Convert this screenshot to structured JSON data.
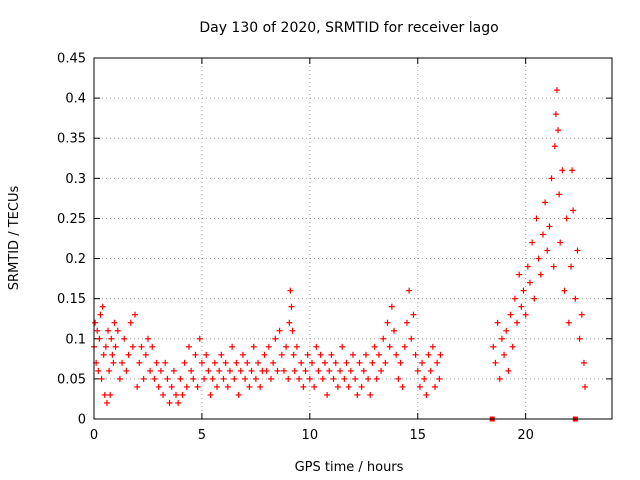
{
  "chart_data": {
    "type": "scatter",
    "title": "Day 130 of 2020, SRMTID for receiver lago",
    "xlabel": "GPS time / hours",
    "ylabel": "SRMTID / TECUs",
    "xlim": [
      0,
      24
    ],
    "ylim": [
      0,
      0.45
    ],
    "xticks": [
      0,
      5,
      10,
      15,
      20
    ],
    "xtick_labels": [
      "0",
      "5",
      "10",
      "15",
      "20"
    ],
    "yticks": [
      0,
      0.05,
      0.1,
      0.15,
      0.2,
      0.25,
      0.3,
      0.35,
      0.4,
      0.45
    ],
    "ytick_labels": [
      "0",
      "0.05",
      "0.1",
      "0.15",
      "0.2",
      "0.25",
      "0.3",
      "0.35",
      "0.4",
      "0.45"
    ],
    "grid": true,
    "marker": "plus",
    "color": "#ff0000",
    "series": [
      {
        "name": "SRMTID",
        "points": [
          [
            0.0,
            0.09
          ],
          [
            0.05,
            0.12
          ],
          [
            0.1,
            0.07
          ],
          [
            0.15,
            0.11
          ],
          [
            0.2,
            0.06
          ],
          [
            0.25,
            0.1
          ],
          [
            0.3,
            0.13
          ],
          [
            0.35,
            0.05
          ],
          [
            0.4,
            0.14
          ],
          [
            0.45,
            0.08
          ],
          [
            0.5,
            0.03
          ],
          [
            0.55,
            0.09
          ],
          [
            0.6,
            0.02
          ],
          [
            0.65,
            0.11
          ],
          [
            0.7,
            0.06
          ],
          [
            0.75,
            0.03
          ],
          [
            0.8,
            0.1
          ],
          [
            0.85,
            0.08
          ],
          [
            0.9,
            0.07
          ],
          [
            0.95,
            0.12
          ],
          [
            1.0,
            0.09
          ],
          [
            1.1,
            0.11
          ],
          [
            1.2,
            0.05
          ],
          [
            1.3,
            0.07
          ],
          [
            1.4,
            0.1
          ],
          [
            1.5,
            0.06
          ],
          [
            1.6,
            0.08
          ],
          [
            1.7,
            0.12
          ],
          [
            1.8,
            0.09
          ],
          [
            1.9,
            0.13
          ],
          [
            2.0,
            0.04
          ],
          [
            2.1,
            0.07
          ],
          [
            2.2,
            0.09
          ],
          [
            2.3,
            0.05
          ],
          [
            2.4,
            0.08
          ],
          [
            2.5,
            0.1
          ],
          [
            2.6,
            0.06
          ],
          [
            2.7,
            0.09
          ],
          [
            2.8,
            0.05
          ],
          [
            2.9,
            0.07
          ],
          [
            3.0,
            0.04
          ],
          [
            3.1,
            0.06
          ],
          [
            3.2,
            0.03
          ],
          [
            3.3,
            0.07
          ],
          [
            3.4,
            0.05
          ],
          [
            3.5,
            0.02
          ],
          [
            3.6,
            0.04
          ],
          [
            3.7,
            0.06
          ],
          [
            3.8,
            0.03
          ],
          [
            3.9,
            0.02
          ],
          [
            4.0,
            0.05
          ],
          [
            4.1,
            0.03
          ],
          [
            4.2,
            0.07
          ],
          [
            4.3,
            0.04
          ],
          [
            4.4,
            0.09
          ],
          [
            4.5,
            0.06
          ],
          [
            4.6,
            0.05
          ],
          [
            4.7,
            0.08
          ],
          [
            4.8,
            0.04
          ],
          [
            4.9,
            0.1
          ],
          [
            5.0,
            0.07
          ],
          [
            5.1,
            0.05
          ],
          [
            5.2,
            0.08
          ],
          [
            5.3,
            0.06
          ],
          [
            5.4,
            0.03
          ],
          [
            5.5,
            0.05
          ],
          [
            5.6,
            0.07
          ],
          [
            5.7,
            0.04
          ],
          [
            5.8,
            0.06
          ],
          [
            5.9,
            0.08
          ],
          [
            6.0,
            0.05
          ],
          [
            6.1,
            0.07
          ],
          [
            6.2,
            0.04
          ],
          [
            6.3,
            0.06
          ],
          [
            6.4,
            0.09
          ],
          [
            6.5,
            0.05
          ],
          [
            6.6,
            0.07
          ],
          [
            6.7,
            0.03
          ],
          [
            6.8,
            0.06
          ],
          [
            6.9,
            0.08
          ],
          [
            7.0,
            0.05
          ],
          [
            7.1,
            0.07
          ],
          [
            7.2,
            0.04
          ],
          [
            7.3,
            0.06
          ],
          [
            7.4,
            0.09
          ],
          [
            7.5,
            0.05
          ],
          [
            7.6,
            0.07
          ],
          [
            7.7,
            0.04
          ],
          [
            7.8,
            0.06
          ],
          [
            7.9,
            0.08
          ],
          [
            8.0,
            0.06
          ],
          [
            8.1,
            0.09
          ],
          [
            8.2,
            0.05
          ],
          [
            8.3,
            0.07
          ],
          [
            8.4,
            0.1
          ],
          [
            8.5,
            0.06
          ],
          [
            8.6,
            0.11
          ],
          [
            8.7,
            0.08
          ],
          [
            8.8,
            0.06
          ],
          [
            8.9,
            0.09
          ],
          [
            9.0,
            0.05
          ],
          [
            9.05,
            0.12
          ],
          [
            9.1,
            0.16
          ],
          [
            9.15,
            0.14
          ],
          [
            9.2,
            0.11
          ],
          [
            9.25,
            0.08
          ],
          [
            9.3,
            0.06
          ],
          [
            9.4,
            0.09
          ],
          [
            9.5,
            0.05
          ],
          [
            9.6,
            0.07
          ],
          [
            9.7,
            0.04
          ],
          [
            9.8,
            0.06
          ],
          [
            9.9,
            0.08
          ],
          [
            10.0,
            0.05
          ],
          [
            10.1,
            0.07
          ],
          [
            10.2,
            0.04
          ],
          [
            10.3,
            0.09
          ],
          [
            10.4,
            0.06
          ],
          [
            10.5,
            0.08
          ],
          [
            10.6,
            0.05
          ],
          [
            10.7,
            0.07
          ],
          [
            10.8,
            0.03
          ],
          [
            10.9,
            0.06
          ],
          [
            11.0,
            0.08
          ],
          [
            11.1,
            0.05
          ],
          [
            11.2,
            0.07
          ],
          [
            11.3,
            0.04
          ],
          [
            11.4,
            0.06
          ],
          [
            11.5,
            0.09
          ],
          [
            11.6,
            0.05
          ],
          [
            11.7,
            0.07
          ],
          [
            11.8,
            0.04
          ],
          [
            11.9,
            0.06
          ],
          [
            12.0,
            0.08
          ],
          [
            12.1,
            0.05
          ],
          [
            12.2,
            0.03
          ],
          [
            12.3,
            0.07
          ],
          [
            12.4,
            0.04
          ],
          [
            12.5,
            0.06
          ],
          [
            12.6,
            0.08
          ],
          [
            12.7,
            0.05
          ],
          [
            12.8,
            0.03
          ],
          [
            12.9,
            0.07
          ],
          [
            13.0,
            0.09
          ],
          [
            13.1,
            0.05
          ],
          [
            13.2,
            0.08
          ],
          [
            13.3,
            0.06
          ],
          [
            13.4,
            0.1
          ],
          [
            13.5,
            0.07
          ],
          [
            13.6,
            0.12
          ],
          [
            13.7,
            0.09
          ],
          [
            13.8,
            0.14
          ],
          [
            13.9,
            0.11
          ],
          [
            14.0,
            0.08
          ],
          [
            14.1,
            0.05
          ],
          [
            14.2,
            0.07
          ],
          [
            14.3,
            0.04
          ],
          [
            14.4,
            0.09
          ],
          [
            14.5,
            0.12
          ],
          [
            14.6,
            0.16
          ],
          [
            14.7,
            0.1
          ],
          [
            14.8,
            0.13
          ],
          [
            14.9,
            0.08
          ],
          [
            15.0,
            0.06
          ],
          [
            15.1,
            0.04
          ],
          [
            15.2,
            0.07
          ],
          [
            15.3,
            0.05
          ],
          [
            15.4,
            0.03
          ],
          [
            15.5,
            0.08
          ],
          [
            15.6,
            0.06
          ],
          [
            15.7,
            0.09
          ],
          [
            15.8,
            0.04
          ],
          [
            15.9,
            0.07
          ],
          [
            16.0,
            0.05
          ],
          [
            16.05,
            0.08
          ],
          [
            18.5,
            0.09
          ],
          [
            18.6,
            0.07
          ],
          [
            18.7,
            0.12
          ],
          [
            18.8,
            0.05
          ],
          [
            18.9,
            0.1
          ],
          [
            19.0,
            0.08
          ],
          [
            19.1,
            0.11
          ],
          [
            19.2,
            0.06
          ],
          [
            19.3,
            0.13
          ],
          [
            19.4,
            0.09
          ],
          [
            19.5,
            0.15
          ],
          [
            19.6,
            0.12
          ],
          [
            19.7,
            0.18
          ],
          [
            19.8,
            0.14
          ],
          [
            19.9,
            0.16
          ],
          [
            20.0,
            0.13
          ],
          [
            20.1,
            0.19
          ],
          [
            20.2,
            0.17
          ],
          [
            20.3,
            0.22
          ],
          [
            20.4,
            0.15
          ],
          [
            20.5,
            0.25
          ],
          [
            20.6,
            0.2
          ],
          [
            20.7,
            0.18
          ],
          [
            20.8,
            0.23
          ],
          [
            20.9,
            0.27
          ],
          [
            21.0,
            0.21
          ],
          [
            21.1,
            0.24
          ],
          [
            21.2,
            0.3
          ],
          [
            21.3,
            0.19
          ],
          [
            21.35,
            0.34
          ],
          [
            21.4,
            0.38
          ],
          [
            21.45,
            0.41
          ],
          [
            21.5,
            0.36
          ],
          [
            21.55,
            0.28
          ],
          [
            21.6,
            0.22
          ],
          [
            21.7,
            0.31
          ],
          [
            21.8,
            0.16
          ],
          [
            21.9,
            0.25
          ],
          [
            22.0,
            0.12
          ],
          [
            22.1,
            0.19
          ],
          [
            22.15,
            0.31
          ],
          [
            22.2,
            0.26
          ],
          [
            22.3,
            0.15
          ],
          [
            22.4,
            0.21
          ],
          [
            22.5,
            0.1
          ],
          [
            22.6,
            0.13
          ],
          [
            22.7,
            0.07
          ],
          [
            22.75,
            0.04
          ]
        ]
      }
    ],
    "isolated_markers": [
      [
        18.45,
        0.0
      ],
      [
        22.3,
        0.0
      ]
    ]
  }
}
